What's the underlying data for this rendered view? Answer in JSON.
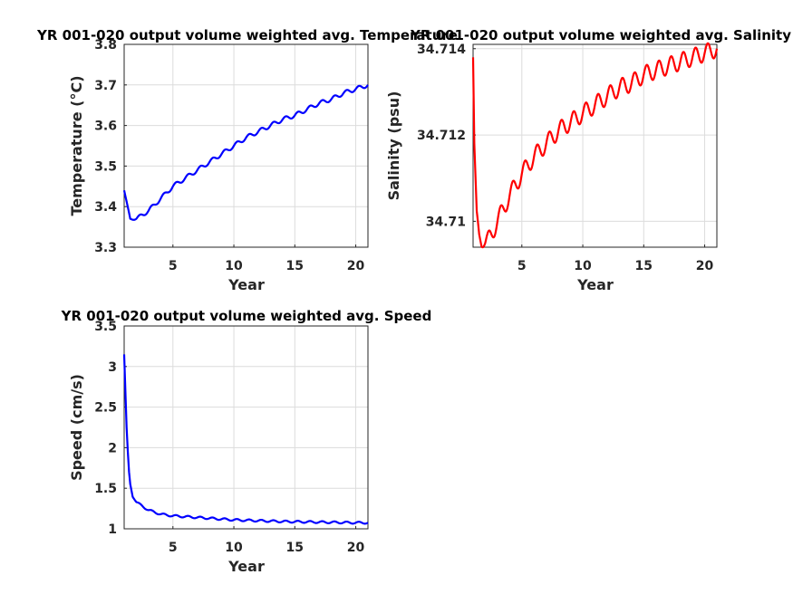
{
  "figure": {
    "charts": [
      {
        "type": "line",
        "title": "YR 001-020 output volume weighted avg. Temperature",
        "xlabel": "Year",
        "ylabel": "Temperature (°C)",
        "xlim": [
          1,
          21
        ],
        "ylim": [
          3.3,
          3.8
        ],
        "xticks": [
          5,
          10,
          15,
          20
        ],
        "yticks": [
          3.3,
          3.4,
          3.5,
          3.6,
          3.7,
          3.8
        ],
        "grid": true,
        "seasonal_amplitude": 0.005,
        "series": [
          {
            "color": "#0000ff",
            "x": [
              1.0,
              1.5,
              2.0,
              2.5,
              3.0,
              4.0,
              5.0,
              6.0,
              7.0,
              8.0,
              9.0,
              10.0,
              11.0,
              12.0,
              13.0,
              14.0,
              15.0,
              16.0,
              17.0,
              18.0,
              19.0,
              20.0,
              21.0
            ],
            "y": [
              3.44,
              3.37,
              3.37,
              3.38,
              3.39,
              3.42,
              3.45,
              3.47,
              3.49,
              3.51,
              3.53,
              3.55,
              3.57,
              3.585,
              3.6,
              3.615,
              3.625,
              3.64,
              3.655,
              3.665,
              3.68,
              3.69,
              3.7
            ]
          }
        ]
      },
      {
        "type": "line",
        "title": "YR 001-020 output volume weighted avg. Salinity",
        "xlabel": "Year",
        "ylabel": "Salinity (psu)",
        "xlim": [
          1,
          21
        ],
        "ylim": [
          34.7094,
          34.7141
        ],
        "xticks": [
          5,
          10,
          15,
          20
        ],
        "yticks": [
          34.71,
          34.712,
          34.714
        ],
        "grid": true,
        "seasonal_amplitude": 0.0002,
        "series": [
          {
            "color": "#ff0000",
            "x": [
              1.0,
              1.1,
              1.3,
              1.5,
              1.7,
              2.0,
              2.5,
              3.0,
              4.0,
              5.0,
              6.0,
              7.0,
              8.0,
              9.0,
              10.0,
              11.0,
              12.0,
              13.0,
              14.0,
              15.0,
              16.0,
              17.0,
              18.0,
              19.0,
              20.0,
              21.0
            ],
            "y": [
              34.7138,
              34.7118,
              34.7102,
              34.7097,
              34.7095,
              34.7095,
              34.7097,
              34.71,
              34.7106,
              34.7111,
              34.7115,
              34.7118,
              34.7121,
              34.7123,
              34.7125,
              34.7127,
              34.7129,
              34.7131,
              34.7132,
              34.7134,
              34.7135,
              34.7136,
              34.7137,
              34.7138,
              34.7139,
              34.714
            ]
          }
        ]
      },
      {
        "type": "line",
        "title": "YR 001-020 output volume weighted avg. Speed",
        "xlabel": "Year",
        "ylabel": "Speed (cm/s)",
        "xlim": [
          1,
          21
        ],
        "ylim": [
          1,
          3.5
        ],
        "xticks": [
          5,
          10,
          15,
          20
        ],
        "yticks": [
          1,
          1.5,
          2,
          2.5,
          3,
          3.5
        ],
        "grid": true,
        "seasonal_amplitude": 0.012,
        "series": [
          {
            "color": "#0000ff",
            "x": [
              1.0,
              1.1,
              1.2,
              1.3,
              1.4,
              1.5,
              1.7,
              2.0,
              2.5,
              3.0,
              4.0,
              5.0,
              6.0,
              8.0,
              10.0,
              12.0,
              14.0,
              16.0,
              18.0,
              20.0,
              21.0
            ],
            "y": [
              3.15,
              2.7,
              2.25,
              1.95,
              1.7,
              1.55,
              1.4,
              1.33,
              1.28,
              1.23,
              1.18,
              1.16,
              1.15,
              1.13,
              1.11,
              1.1,
              1.09,
              1.085,
              1.08,
              1.075,
              1.075
            ]
          }
        ]
      }
    ]
  }
}
